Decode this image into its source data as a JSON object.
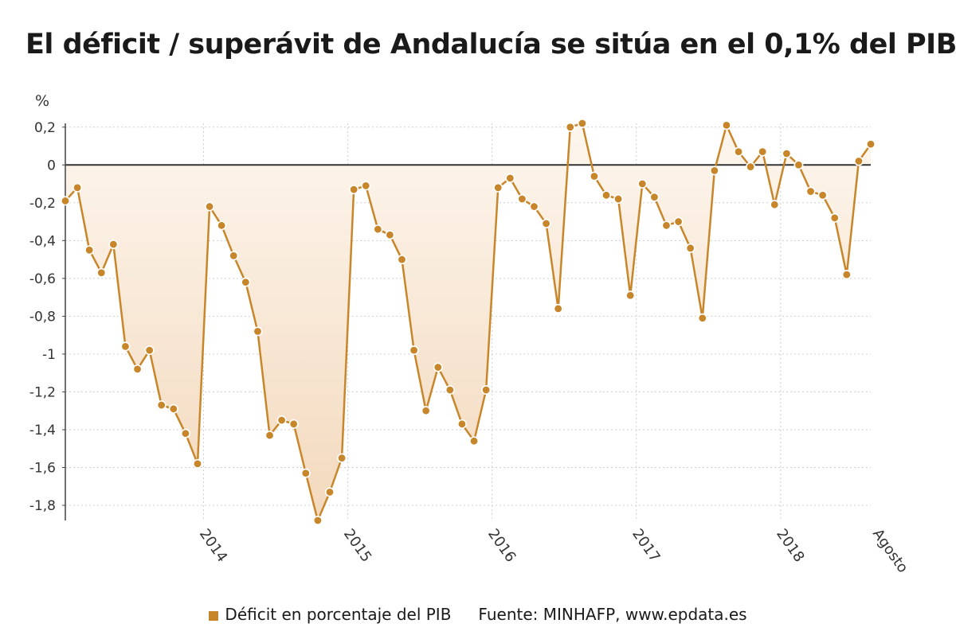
{
  "title": "El déficit / superávit de Andalucía se sitúa en el 0,1% del PIB",
  "legend": {
    "label": "Déficit en porcentaje del PIB",
    "color": "#c8862a"
  },
  "source": "Fuente: MINHAFP, www.epdata.es",
  "chart_data": {
    "type": "area",
    "title": "El déficit / superávit de Andalucía se sitúa en el 0,1% del PIB",
    "ylabel": "%",
    "ylim": [
      -1.88,
      0.22
    ],
    "yticks": [
      0.2,
      0,
      -0.2,
      -0.4,
      -0.6,
      -0.8,
      -1,
      -1.2,
      -1.4,
      -1.6,
      -1.8
    ],
    "ytick_labels": [
      "0,2",
      "0",
      "-0,2",
      "-0,4",
      "-0,6",
      "-0,8",
      "-1",
      "-1,2",
      "-1,4",
      "-1,6",
      "-1,8"
    ],
    "xtick_labels": [
      {
        "label": "2014",
        "index": 11
      },
      {
        "label": "2015",
        "index": 23
      },
      {
        "label": "2016",
        "index": 35
      },
      {
        "label": "2017",
        "index": 47
      },
      {
        "label": "2018",
        "index": 59
      },
      {
        "label": "Agosto",
        "index": 67
      }
    ],
    "grid": true,
    "legend_position": "bottom",
    "series": [
      {
        "name": "Déficit en porcentaje del PIB",
        "color": "#c8862a",
        "values": [
          -0.19,
          -0.12,
          -0.45,
          -0.57,
          -0.42,
          -0.96,
          -1.08,
          -0.98,
          -1.27,
          -1.29,
          -1.42,
          -1.58,
          -0.22,
          -0.32,
          -0.48,
          -0.62,
          -0.88,
          -1.43,
          -1.35,
          -1.37,
          -1.63,
          -1.88,
          -1.73,
          -1.55,
          -0.13,
          -0.11,
          -0.34,
          -0.37,
          -0.5,
          -0.98,
          -1.3,
          -1.07,
          -1.19,
          -1.37,
          -1.46,
          -1.19,
          -0.12,
          -0.07,
          -0.18,
          -0.22,
          -0.31,
          -0.76,
          0.2,
          0.22,
          -0.06,
          -0.16,
          -0.18,
          -0.69,
          -0.1,
          -0.17,
          -0.32,
          -0.3,
          -0.44,
          -0.81,
          -0.03,
          0.21,
          0.07,
          -0.01,
          0.07,
          -0.21,
          0.06,
          0.0,
          -0.14,
          -0.16,
          -0.28,
          -0.58,
          0.02,
          0.11
        ]
      }
    ]
  }
}
